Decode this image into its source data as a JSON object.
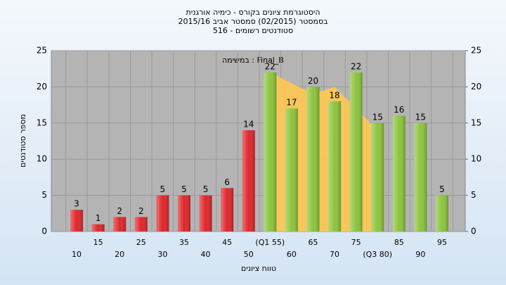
{
  "chart_data": {
    "type": "bar",
    "title": "היסטוגרמת ציונים בקורס - כימיה אורגנית",
    "subtitle": "בסמסטר  (02/2015)  סמסטר אביב 2015/16",
    "subtitle2": "סטודנטים רשומים - 516",
    "annotation": "במשימה : Final_B",
    "x_label": "טווח ציונים",
    "y_label": "מספר סטודנטים",
    "categories": [
      "10",
      "15",
      "20",
      "25",
      "30",
      "35",
      "40",
      "45",
      "50",
      "(Q1 55)",
      "60",
      "65",
      "70",
      "75",
      "(Q3 80)",
      "85",
      "90",
      "95"
    ],
    "values": [
      3,
      1,
      2,
      2,
      5,
      5,
      5,
      6,
      14,
      22,
      17,
      20,
      18,
      22,
      15,
      16,
      15,
      5
    ],
    "colors": [
      "#e0262b",
      "#e0262b",
      "#e0262b",
      "#e0262b",
      "#e0262b",
      "#e0262b",
      "#e0262b",
      "#e0262b",
      "#e0262b",
      "#8cc43c",
      "#8cc43c",
      "#8cc43c",
      "#8cc43c",
      "#8cc43c",
      "#8cc43c",
      "#8cc43c",
      "#8cc43c",
      "#8cc43c"
    ],
    "shaded_area": {
      "color": "#ffc850",
      "start": 9,
      "values": [
        22,
        20.5,
        19,
        20,
        17,
        14
      ]
    },
    "ylim": [
      0,
      25
    ],
    "yticks": [
      0,
      5,
      10,
      15,
      20,
      25
    ],
    "y2lim": [
      0,
      25
    ],
    "y2ticks": [
      0,
      5,
      10,
      15,
      20,
      25
    ],
    "grid": true
  }
}
